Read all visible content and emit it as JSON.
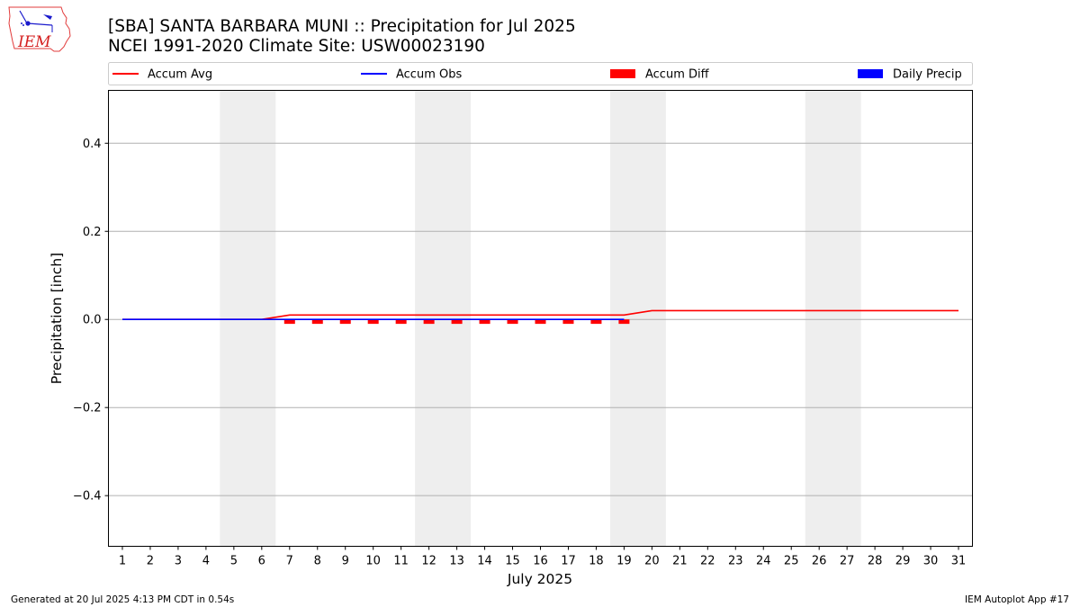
{
  "header": {
    "title_line1": "[SBA] SANTA BARBARA MUNI :: Precipitation for Jul 2025",
    "title_line2": "NCEI 1991-2020 Climate Site: USW00023190"
  },
  "logo": {
    "text": "IEM"
  },
  "footer": {
    "generated": "Generated at 20 Jul 2025 4:13 PM CDT in 0.54s",
    "app": "IEM Autoplot App #17"
  },
  "colors": {
    "accum_avg": "#ff0000",
    "accum_obs": "#0000ff",
    "accum_diff": "#ff0000",
    "daily_precip": "#0000ff",
    "weekend_shade": "#eeeeee",
    "grid": "#b0b0b0"
  },
  "chart_data": {
    "type": "line",
    "xlabel": "July 2025",
    "ylabel": "Precipitation [inch]",
    "xlim": [
      0.5,
      31.5
    ],
    "ylim": [
      -0.515,
      0.52
    ],
    "yticks": [
      -0.4,
      -0.2,
      0.0,
      0.2,
      0.4
    ],
    "ytick_labels": [
      "−0.4",
      "−0.2",
      "0.0",
      "0.2",
      "0.4"
    ],
    "xticks": [
      1,
      2,
      3,
      4,
      5,
      6,
      7,
      8,
      9,
      10,
      11,
      12,
      13,
      14,
      15,
      16,
      17,
      18,
      19,
      20,
      21,
      22,
      23,
      24,
      25,
      26,
      27,
      28,
      29,
      30,
      31
    ],
    "grid": "y",
    "legend_placement": "top",
    "weekend_spans": [
      [
        5,
        6
      ],
      [
        12,
        13
      ],
      [
        19,
        20
      ],
      [
        26,
        27
      ]
    ],
    "legend": [
      {
        "label": "Accum Avg",
        "kind": "line",
        "color": "#ff0000"
      },
      {
        "label": "Accum Obs",
        "kind": "line",
        "color": "#0000ff"
      },
      {
        "label": "Accum Diff",
        "kind": "bar",
        "color": "#ff0000"
      },
      {
        "label": "Daily Precip",
        "kind": "bar",
        "color": "#0000ff"
      }
    ],
    "series": [
      {
        "name": "Accum Avg",
        "x": [
          1,
          2,
          3,
          4,
          5,
          6,
          7,
          8,
          9,
          10,
          11,
          12,
          13,
          14,
          15,
          16,
          17,
          18,
          19,
          20,
          21,
          22,
          23,
          24,
          25,
          26,
          27,
          28,
          29,
          30,
          31
        ],
        "values": [
          0,
          0,
          0,
          0,
          0,
          0,
          0.01,
          0.01,
          0.01,
          0.01,
          0.01,
          0.01,
          0.01,
          0.01,
          0.01,
          0.01,
          0.01,
          0.01,
          0.01,
          0.02,
          0.02,
          0.02,
          0.02,
          0.02,
          0.02,
          0.02,
          0.02,
          0.02,
          0.02,
          0.02,
          0.02
        ]
      },
      {
        "name": "Accum Obs",
        "x": [
          1,
          2,
          3,
          4,
          5,
          6,
          7,
          8,
          9,
          10,
          11,
          12,
          13,
          14,
          15,
          16,
          17,
          18,
          19
        ],
        "values": [
          0,
          0,
          0,
          0,
          0,
          0,
          0,
          0,
          0,
          0,
          0,
          0,
          0,
          0,
          0,
          0,
          0,
          0,
          0
        ]
      },
      {
        "name": "Accum Diff",
        "x": [
          7,
          8,
          9,
          10,
          11,
          12,
          13,
          14,
          15,
          16,
          17,
          18,
          19
        ],
        "values": [
          -0.01,
          -0.01,
          -0.01,
          -0.01,
          -0.01,
          -0.01,
          -0.01,
          -0.01,
          -0.01,
          -0.01,
          -0.01,
          -0.01,
          -0.01
        ]
      },
      {
        "name": "Daily Precip",
        "x": [
          1,
          2,
          3,
          4,
          5,
          6,
          7,
          8,
          9,
          10,
          11,
          12,
          13,
          14,
          15,
          16,
          17,
          18,
          19
        ],
        "values": [
          0,
          0,
          0,
          0,
          0,
          0,
          0,
          0,
          0,
          0,
          0,
          0,
          0,
          0,
          0,
          0,
          0,
          0,
          0
        ]
      }
    ]
  }
}
